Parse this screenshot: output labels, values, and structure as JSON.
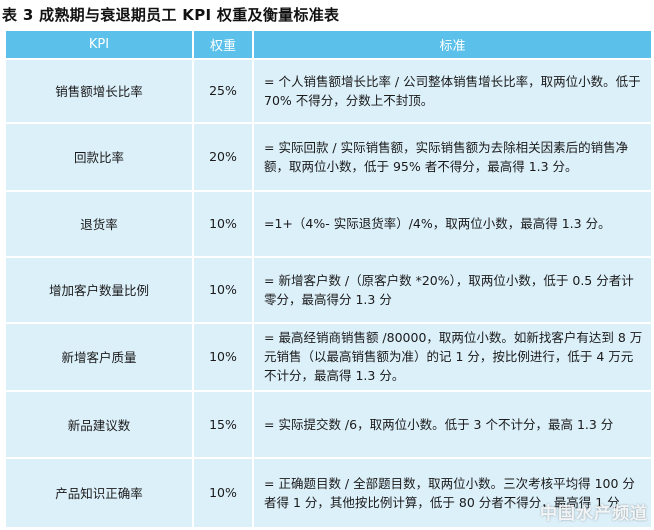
{
  "title": "表 3 成熟期与衰退期员工 KPI 权重及衡量标准表",
  "headers": {
    "kpi": "KPI",
    "weight": "权重",
    "standard": "标准"
  },
  "rows": [
    {
      "kpi": "销售额增长比率",
      "weight": "25%",
      "standard": "= 个人销售额增长比率 / 公司整体销售增长比率，取两位小数。低于 70% 不得分，分数上不封顶。"
    },
    {
      "kpi": "回款比率",
      "weight": "20%",
      "standard": "= 实际回款 / 实际销售额，实际销售额为去除相关因素后的销售净额，取两位小数，低于 95% 者不得分，最高得 1.3 分。"
    },
    {
      "kpi": "退货率",
      "weight": "10%",
      "standard": "=1+（4%- 实际退货率）/4%，取两位小数，最高得 1.3 分。"
    },
    {
      "kpi": "增加客户数量比例",
      "weight": "10%",
      "standard": "= 新增客户数 /（原客户数 *20%），取两位小数，低于 0.5 分者计零分，最高得分 1.3 分"
    },
    {
      "kpi": "新增客户质量",
      "weight": "10%",
      "standard": "= 最高经销商销售额 /80000，取两位小数。如新找客户有达到 8 万元销售（以最高销售额为准）的记 1 分，按比例进行，低于 4 万元不计分，最高得 1.3 分。"
    },
    {
      "kpi": "新品建议数",
      "weight": "15%",
      "standard": "= 实际提交数 /6，取两位小数。低于 3 个不计分，最高 1.3 分"
    },
    {
      "kpi": "产品知识正确率",
      "weight": "10%",
      "standard": "= 正确题目数 / 全部题目数，取两位小数。三次考核平均得 100 分者得 1 分，其他按比例计算，低于 80 分者不得分，最高得 1 分"
    }
  ],
  "watermark": "中国水产频道",
  "colors": {
    "header_bg": "#5bc1ea",
    "cell_bg": "#dcf0fa"
  }
}
